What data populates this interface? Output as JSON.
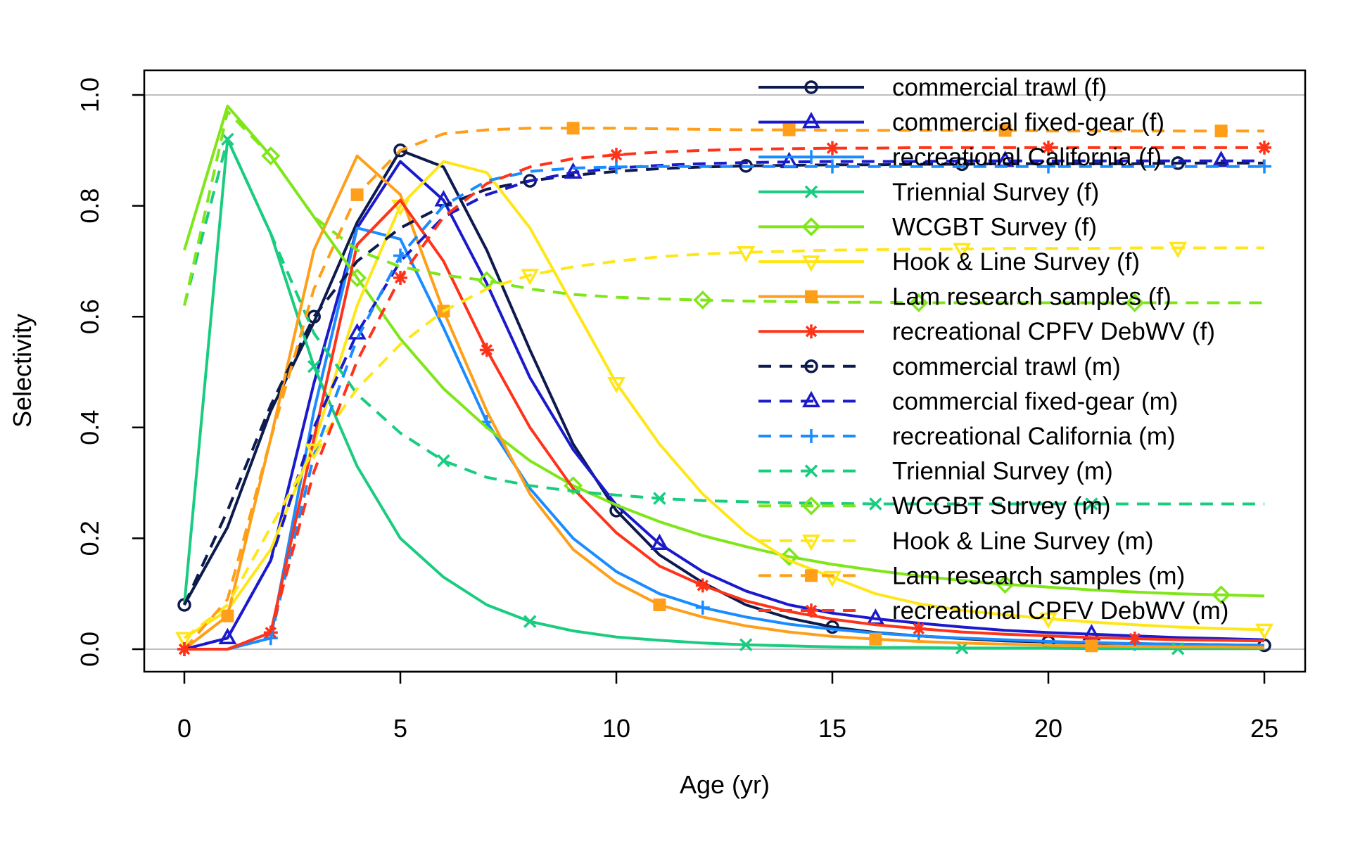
{
  "chart_data": {
    "type": "line",
    "title": "",
    "xlabel": "Age (yr)",
    "ylabel": "Selectivity",
    "xlim": [
      0,
      25
    ],
    "ylim": [
      0,
      1
    ],
    "x_ticks": [
      "0",
      "5",
      "10",
      "15",
      "20",
      "25"
    ],
    "y_ticks": [
      "0.0",
      "0.2",
      "0.4",
      "0.6",
      "0.8",
      "1.0"
    ],
    "reference_lines": [
      0,
      1
    ],
    "reference_line_color": "#bebebe",
    "legend_position": "top-right",
    "x": [
      0,
      1,
      2,
      3,
      4,
      5,
      6,
      7,
      8,
      9,
      10,
      11,
      12,
      13,
      14,
      15,
      16,
      17,
      18,
      19,
      20,
      21,
      22,
      23,
      24,
      25
    ],
    "series": [
      {
        "name": "commercial trawl (f)",
        "color": "#0d1a4d",
        "dash": "solid",
        "marker": "circle",
        "marker_start": 0,
        "marker_step": 5,
        "values": [
          0.08,
          0.22,
          0.43,
          0.59,
          0.77,
          0.9,
          0.87,
          0.72,
          0.54,
          0.37,
          0.25,
          0.17,
          0.12,
          0.08,
          0.056,
          0.04,
          0.03,
          0.024,
          0.019,
          0.015,
          0.013,
          0.011,
          0.01,
          0.009,
          0.008,
          0.007
        ]
      },
      {
        "name": "commercial fixed-gear (f)",
        "color": "#1a1acc",
        "dash": "solid",
        "marker": "triangle",
        "marker_start": 1,
        "marker_step": 5,
        "values": [
          0,
          0.02,
          0.16,
          0.48,
          0.76,
          0.88,
          0.81,
          0.66,
          0.49,
          0.36,
          0.26,
          0.19,
          0.14,
          0.105,
          0.08,
          0.065,
          0.055,
          0.047,
          0.04,
          0.034,
          0.03,
          0.027,
          0.024,
          0.021,
          0.019,
          0.017
        ]
      },
      {
        "name": "recreational California (f)",
        "color": "#1a8cff",
        "dash": "solid",
        "marker": "plus",
        "marker_start": 2,
        "marker_step": 5,
        "values": [
          0,
          0,
          0.02,
          0.43,
          0.76,
          0.74,
          0.58,
          0.41,
          0.29,
          0.2,
          0.14,
          0.1,
          0.075,
          0.058,
          0.045,
          0.036,
          0.029,
          0.024,
          0.02,
          0.017,
          0.014,
          0.012,
          0.01,
          0.009,
          0.008,
          0.007
        ]
      },
      {
        "name": "Triennial Survey (f)",
        "color": "#19cc80",
        "dash": "solid",
        "marker": "x",
        "marker_start": 3,
        "marker_step": 5,
        "values": [
          0.08,
          0.92,
          0.75,
          0.51,
          0.33,
          0.2,
          0.13,
          0.08,
          0.05,
          0.033,
          0.022,
          0.016,
          0.011,
          0.008,
          0.006,
          0.004,
          0.003,
          0.003,
          0.002,
          0.002,
          0.002,
          0.001,
          0.001,
          0.001,
          0.001,
          0.001
        ]
      },
      {
        "name": "WCGBT Survey (f)",
        "color": "#7fe619",
        "dash": "solid",
        "marker": "diamond",
        "marker_start": 4,
        "marker_step": 5,
        "values": [
          0.72,
          0.98,
          0.89,
          0.78,
          0.67,
          0.56,
          0.47,
          0.4,
          0.34,
          0.295,
          0.26,
          0.23,
          0.205,
          0.185,
          0.167,
          0.153,
          0.142,
          0.132,
          0.124,
          0.117,
          0.112,
          0.107,
          0.103,
          0.1,
          0.098,
          0.096
        ]
      },
      {
        "name": "Hook & Line Survey (f)",
        "color": "#ffe619",
        "dash": "solid",
        "marker": "triangle-down",
        "marker_start": 0,
        "marker_step": 5,
        "values": [
          0.02,
          0.07,
          0.18,
          0.37,
          0.62,
          0.8,
          0.88,
          0.86,
          0.76,
          0.62,
          0.48,
          0.37,
          0.28,
          0.21,
          0.16,
          0.13,
          0.1,
          0.082,
          0.07,
          0.062,
          0.055,
          0.049,
          0.044,
          0.04,
          0.037,
          0.035
        ]
      },
      {
        "name": "Lam research samples (f)",
        "color": "#ff9f19",
        "dash": "solid",
        "marker": "square",
        "marker_start": 1,
        "marker_step": 5,
        "values": [
          0,
          0.06,
          0.38,
          0.72,
          0.89,
          0.82,
          0.61,
          0.43,
          0.28,
          0.18,
          0.12,
          0.08,
          0.058,
          0.042,
          0.031,
          0.023,
          0.018,
          0.014,
          0.011,
          0.009,
          0.007,
          0.006,
          0.005,
          0.004,
          0.004,
          0.003
        ]
      },
      {
        "name": "recreational CPFV DebWV (f)",
        "color": "#ff3319",
        "dash": "solid",
        "marker": "asterisk",
        "marker_start": 2,
        "marker_step": 5,
        "values": [
          0,
          0,
          0.03,
          0.38,
          0.73,
          0.81,
          0.7,
          0.54,
          0.4,
          0.29,
          0.21,
          0.15,
          0.115,
          0.087,
          0.068,
          0.054,
          0.044,
          0.037,
          0.031,
          0.027,
          0.024,
          0.021,
          0.019,
          0.017,
          0.016,
          0.015
        ]
      },
      {
        "name": "commercial trawl (m)",
        "color": "#0d1a4d",
        "dash": "dashed",
        "marker": "circle",
        "marker_start": 3,
        "marker_step": 5,
        "values": [
          0.08,
          0.25,
          0.44,
          0.6,
          0.7,
          0.76,
          0.8,
          0.83,
          0.845,
          0.855,
          0.862,
          0.867,
          0.87,
          0.872,
          0.873,
          0.874,
          0.874,
          0.875,
          0.875,
          0.876,
          0.876,
          0.876,
          0.876,
          0.877,
          0.877,
          0.877
        ]
      },
      {
        "name": "commercial fixed-gear (m)",
        "color": "#1a1acc",
        "dash": "dashed",
        "marker": "triangle",
        "marker_start": 4,
        "marker_step": 5,
        "values": [
          0,
          0.02,
          0.16,
          0.4,
          0.57,
          0.7,
          0.78,
          0.82,
          0.845,
          0.86,
          0.868,
          0.873,
          0.876,
          0.878,
          0.879,
          0.88,
          0.88,
          0.88,
          0.881,
          0.881,
          0.881,
          0.881,
          0.881,
          0.881,
          0.881,
          0.881
        ]
      },
      {
        "name": "recreational California (m)",
        "color": "#1a8cff",
        "dash": "dashed",
        "marker": "plus",
        "marker_start": 0,
        "marker_step": 5,
        "values": [
          0,
          0,
          0.02,
          0.35,
          0.56,
          0.71,
          0.8,
          0.845,
          0.862,
          0.868,
          0.87,
          0.871,
          0.871,
          0.871,
          0.871,
          0.871,
          0.871,
          0.871,
          0.871,
          0.871,
          0.871,
          0.871,
          0.871,
          0.871,
          0.871,
          0.871
        ]
      },
      {
        "name": "Triennial Survey (m)",
        "color": "#19cc80",
        "dash": "dashed",
        "marker": "x",
        "marker_start": 1,
        "marker_step": 5,
        "values": [
          0.62,
          0.92,
          0.75,
          0.57,
          0.46,
          0.39,
          0.34,
          0.31,
          0.295,
          0.285,
          0.278,
          0.272,
          0.268,
          0.266,
          0.264,
          0.263,
          0.262,
          0.262,
          0.262,
          0.262,
          0.262,
          0.262,
          0.262,
          0.262,
          0.262,
          0.262
        ]
      },
      {
        "name": "WCGBT Survey (m)",
        "color": "#7fe619",
        "dash": "dashed",
        "marker": "diamond",
        "marker_start": 2,
        "marker_step": 5,
        "values": [
          0.62,
          0.97,
          0.89,
          0.78,
          0.72,
          0.69,
          0.675,
          0.665,
          0.65,
          0.64,
          0.635,
          0.632,
          0.63,
          0.628,
          0.627,
          0.626,
          0.626,
          0.625,
          0.625,
          0.625,
          0.625,
          0.625,
          0.625,
          0.625,
          0.625,
          0.625
        ]
      },
      {
        "name": "Hook & Line Survey (m)",
        "color": "#ffe619",
        "dash": "dashed",
        "marker": "triangle-down",
        "marker_start": 3,
        "marker_step": 5,
        "values": [
          0.02,
          0.08,
          0.22,
          0.36,
          0.47,
          0.55,
          0.61,
          0.65,
          0.675,
          0.69,
          0.7,
          0.708,
          0.713,
          0.716,
          0.718,
          0.72,
          0.721,
          0.722,
          0.722,
          0.723,
          0.723,
          0.723,
          0.724,
          0.724,
          0.724,
          0.724
        ]
      },
      {
        "name": "Lam research samples (m)",
        "color": "#ff9f19",
        "dash": "dashed",
        "marker": "square",
        "marker_start": 4,
        "marker_step": 5,
        "values": [
          0,
          0.09,
          0.38,
          0.65,
          0.82,
          0.9,
          0.93,
          0.937,
          0.94,
          0.94,
          0.94,
          0.939,
          0.938,
          0.937,
          0.937,
          0.936,
          0.936,
          0.936,
          0.936,
          0.936,
          0.935,
          0.935,
          0.935,
          0.935,
          0.935,
          0.935
        ]
      },
      {
        "name": "recreational CPFV DebWV (m)",
        "color": "#ff3319",
        "dash": "dashed",
        "marker": "asterisk",
        "marker_start": 0,
        "marker_step": 5,
        "values": [
          0,
          0,
          0.03,
          0.32,
          0.52,
          0.67,
          0.78,
          0.84,
          0.87,
          0.885,
          0.892,
          0.897,
          0.9,
          0.902,
          0.903,
          0.904,
          0.904,
          0.905,
          0.905,
          0.905,
          0.905,
          0.905,
          0.905,
          0.905,
          0.905,
          0.905
        ]
      }
    ]
  }
}
